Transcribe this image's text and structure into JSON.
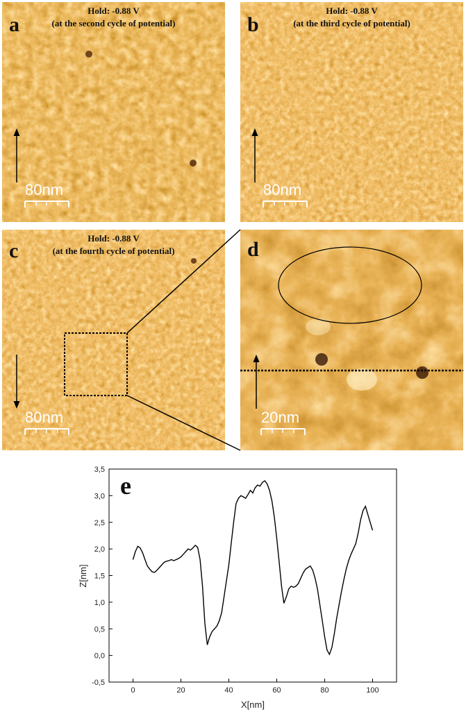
{
  "panels": {
    "a": {
      "label": "a",
      "caption_line1": "Hold: -0.88 V",
      "caption_line2": "(at the second cycle of potential)",
      "scale_bar": "80nm"
    },
    "b": {
      "label": "b",
      "caption_line1": "Hold: -0.88 V",
      "caption_line2": "(at the third cycle of potential)",
      "scale_bar": "80nm"
    },
    "c": {
      "label": "c",
      "caption_line1": "Hold: -0.88 V",
      "caption_line2": "(at the fourth cycle of potential)",
      "scale_bar": "80nm"
    },
    "d": {
      "label": "d",
      "scale_bar": "20nm"
    }
  },
  "colors": {
    "afm_dark": "#5a1e00",
    "afm_mid": "#c4660f",
    "afm_light": "#ffe9b8"
  },
  "chart_data": {
    "type": "line",
    "panel_label": "e",
    "xlabel": "X[nm]",
    "ylabel": "Z[nm]",
    "xlim": [
      -10,
      110
    ],
    "ylim": [
      -0.5,
      3.5
    ],
    "x_ticks": [
      0,
      20,
      40,
      60,
      80,
      100
    ],
    "y_ticks": [
      "-0.5",
      "0.0",
      "0.5",
      "1.0",
      "1.5",
      "2.0",
      "2.5",
      "3.0",
      "3.5"
    ],
    "x": [
      0,
      1,
      2,
      3,
      4,
      5,
      6,
      7,
      8,
      9,
      10,
      11,
      12,
      13,
      14,
      15,
      16,
      17,
      18,
      19,
      20,
      21,
      22,
      23,
      24,
      25,
      26,
      27,
      28,
      29,
      30,
      31,
      32,
      33,
      34,
      35,
      36,
      37,
      38,
      39,
      40,
      41,
      42,
      43,
      44,
      45,
      46,
      47,
      48,
      49,
      50,
      51,
      52,
      53,
      54,
      55,
      56,
      57,
      58,
      59,
      60,
      61,
      62,
      63,
      64,
      65,
      66,
      67,
      68,
      69,
      70,
      71,
      72,
      73,
      74,
      75,
      76,
      77,
      78,
      79,
      80,
      81,
      82,
      83,
      84,
      85,
      86,
      87,
      88,
      89,
      90,
      91,
      92,
      93,
      94,
      95,
      96,
      97,
      98,
      99,
      100
    ],
    "y": [
      1.8,
      1.95,
      2.05,
      2.02,
      1.93,
      1.8,
      1.68,
      1.62,
      1.57,
      1.56,
      1.6,
      1.65,
      1.7,
      1.75,
      1.77,
      1.78,
      1.8,
      1.78,
      1.8,
      1.82,
      1.85,
      1.9,
      1.95,
      2.0,
      1.98,
      2.02,
      2.07,
      2.03,
      1.8,
      1.3,
      0.6,
      0.2,
      0.35,
      0.45,
      0.5,
      0.55,
      0.65,
      0.8,
      1.1,
      1.4,
      1.7,
      2.1,
      2.5,
      2.85,
      2.95,
      3.0,
      2.98,
      2.95,
      3.02,
      3.1,
      3.05,
      3.15,
      3.2,
      3.18,
      3.25,
      3.28,
      3.22,
      3.1,
      2.9,
      2.6,
      2.2,
      1.75,
      1.3,
      0.98,
      1.1,
      1.25,
      1.3,
      1.28,
      1.3,
      1.35,
      1.45,
      1.55,
      1.62,
      1.65,
      1.68,
      1.6,
      1.45,
      1.25,
      0.95,
      0.65,
      0.35,
      0.1,
      0.02,
      0.15,
      0.4,
      0.7,
      0.95,
      1.2,
      1.42,
      1.62,
      1.78,
      1.9,
      2.0,
      2.1,
      2.3,
      2.55,
      2.72,
      2.8,
      2.65,
      2.5,
      2.35
    ]
  }
}
